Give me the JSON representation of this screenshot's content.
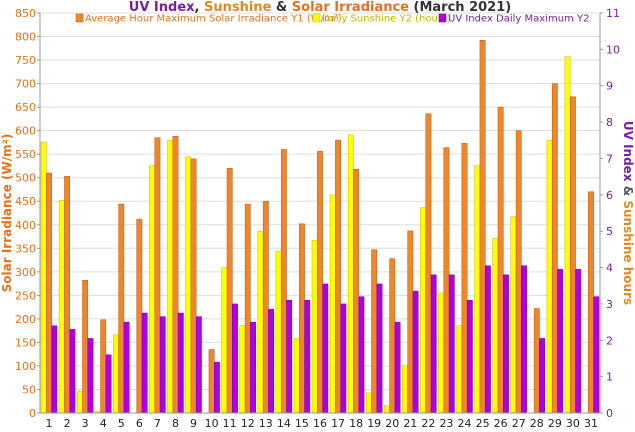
{
  "chart_data": {
    "type": "bar",
    "title_parts": [
      {
        "text": "UV Index",
        "color": "#7a1fa2"
      },
      {
        "text": ", ",
        "color": "#333333"
      },
      {
        "text": "Sunshine",
        "color": "#e08a1e"
      },
      {
        "text": " & ",
        "color": "#333333"
      },
      {
        "text": "Solar Irradiance",
        "color": "#e8701a"
      },
      {
        "text": " (March 2021)",
        "color": "#333333"
      }
    ],
    "y1label": "Solar Irradiance (W/m²)",
    "y2label_parts": [
      {
        "text": "UV Index",
        "color": "#7a1fa2"
      },
      {
        "text": " & ",
        "color": "#555555"
      },
      {
        "text": "Sunshine hours",
        "color": "#e08a1e"
      }
    ],
    "y1lim": [
      0,
      850
    ],
    "y1ticks": [
      0,
      50,
      100,
      150,
      200,
      250,
      300,
      350,
      400,
      450,
      500,
      550,
      600,
      650,
      700,
      750,
      800,
      850
    ],
    "y2lim": [
      0,
      11
    ],
    "y2ticks": [
      0,
      1,
      2,
      3,
      4,
      5,
      6,
      7,
      8,
      9,
      10,
      11
    ],
    "categories": [
      "1",
      "2",
      "3",
      "4",
      "5",
      "6",
      "7",
      "8",
      "9",
      "10",
      "11",
      "12",
      "13",
      "14",
      "15",
      "16",
      "17",
      "18",
      "19",
      "20",
      "21",
      "22",
      "23",
      "24",
      "25",
      "26",
      "27",
      "28",
      "29",
      "30",
      "31"
    ],
    "legend_position": "top",
    "series": [
      {
        "name": "Daily Sunshine Y2 (hours)",
        "axis": "y2",
        "color": "#ffff00",
        "stroke": "#c8b400",
        "legend_color": "#c8b400",
        "values": [
          7.45,
          5.85,
          0.6,
          0.05,
          2.15,
          0,
          6.8,
          7.5,
          7.05,
          0,
          4.0,
          2.4,
          5.0,
          4.45,
          2.05,
          4.75,
          6.0,
          7.65,
          0.55,
          0.2,
          1.3,
          5.65,
          3.3,
          2.4,
          6.8,
          4.8,
          5.4,
          0,
          7.5,
          9.8,
          0
        ]
      },
      {
        "name": "Average Hour Maximum Solar Irradiance Y1 (W/m²)",
        "axis": "y1",
        "color": "#f0862c",
        "stroke": "#b85a10",
        "legend_color": "#e8701a",
        "values": [
          510,
          503,
          282,
          198,
          444,
          412,
          585,
          588,
          540,
          135,
          520,
          444,
          450,
          560,
          402,
          556,
          580,
          518,
          347,
          328,
          387,
          636,
          564,
          573,
          792,
          650,
          600,
          222,
          700,
          672,
          470
        ]
      },
      {
        "name": "UV Index Daily Maximum Y2",
        "axis": "y2",
        "color": "#b000e0",
        "stroke": "#7a00a0",
        "legend_color": "#7a1fa2",
        "values": [
          2.4,
          2.3,
          2.05,
          1.6,
          2.5,
          2.75,
          2.65,
          2.75,
          2.65,
          1.4,
          3.0,
          2.5,
          2.85,
          3.1,
          3.1,
          3.55,
          3.0,
          3.2,
          3.55,
          2.5,
          3.35,
          3.8,
          3.8,
          3.1,
          4.05,
          3.8,
          4.05,
          2.05,
          3.95,
          3.95,
          3.2
        ]
      }
    ]
  }
}
